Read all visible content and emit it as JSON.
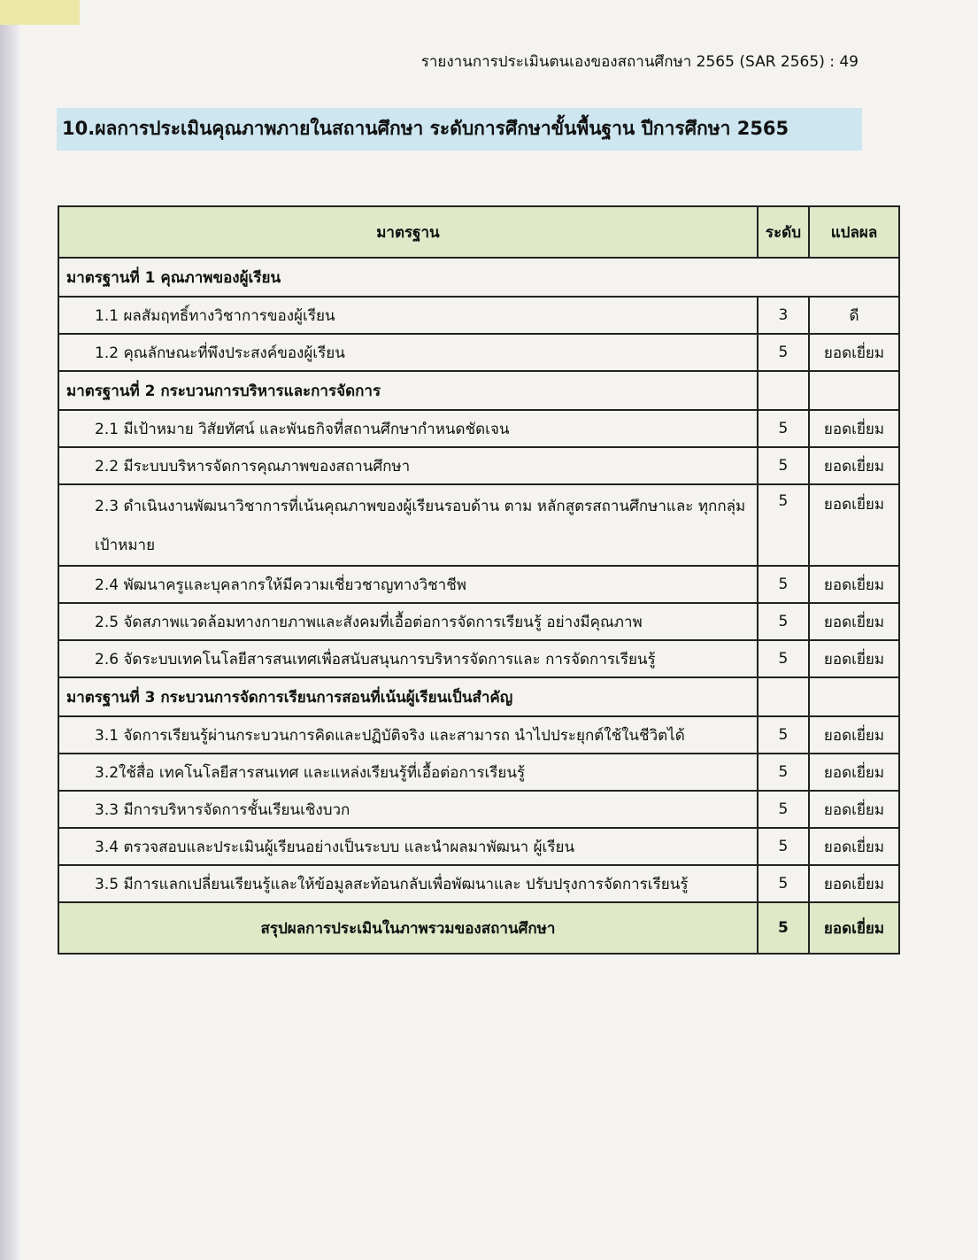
{
  "running_header": "รายงานการประเมินตนเองของสถานศึกษา 2565 (SAR 2565) : 49",
  "title": "10.ผลการประเมินคุณภาพภายในสถานศึกษา ระดับการศึกษาขั้นพื้นฐาน  ปีการศึกษา 2565",
  "table": {
    "headers": [
      "มาตรฐาน",
      "ระดับ",
      "แปลผล"
    ],
    "rows": [
      {
        "type": "group",
        "text": "มาตรฐานที่ 1 คุณภาพของผู้เรียน",
        "full": true
      },
      {
        "type": "item",
        "text": "1.1 ผลสัมฤทธิ์ทางวิชาการของผู้เรียน",
        "level": "3",
        "result": "ดี"
      },
      {
        "type": "item",
        "text": "1.2 คุณลักษณะที่พึงประสงค์ของผู้เรียน",
        "level": "5",
        "result": "ยอดเยี่ยม"
      },
      {
        "type": "group",
        "text": "มาตรฐานที่ 2 กระบวนการบริหารและการจัดการ"
      },
      {
        "type": "item",
        "text": "2.1 มีเป้าหมาย วิสัยทัศน์ และพันธกิจที่สถานศึกษากำหนดชัดเจน",
        "level": "5",
        "result": "ยอดเยี่ยม"
      },
      {
        "type": "item",
        "text": "2.2 มีระบบบริหารจัดการคุณภาพของสถานศึกษา",
        "level": "5",
        "result": "ยอดเยี่ยม"
      },
      {
        "type": "item",
        "text": "2.3 ดำเนินงานพัฒนาวิชาการที่เน้นคุณภาพของผู้เรียนรอบด้าน ตาม หลักสูตรสถานศึกษาและ ทุกกลุ่มเป้าหมาย",
        "level": "5",
        "result": "ยอดเยี่ยม",
        "multi": true
      },
      {
        "type": "item",
        "text": "2.4 พัฒนาครูและบุคลากรให้มีความเชี่ยวชาญทางวิชาชีพ",
        "level": "5",
        "result": "ยอดเยี่ยม"
      },
      {
        "type": "item",
        "text": "2.5 จัดสภาพแวดล้อมทางกายภาพและสังคมที่เอื้อต่อการจัดการเรียนรู้ อย่างมีคุณภาพ",
        "level": "5",
        "result": "ยอดเยี่ยม"
      },
      {
        "type": "item",
        "text": "2.6 จัดระบบเทคโนโลยีสารสนเทศเพื่อสนับสนุนการบริหารจัดการและ การจัดการเรียนรู้",
        "level": "5",
        "result": "ยอดเยี่ยม"
      },
      {
        "type": "group",
        "text": "มาตรฐานที่ 3 กระบวนการจัดการเรียนการสอนที่เน้นผู้เรียนเป็นสำคัญ"
      },
      {
        "type": "item",
        "text": "3.1 จัดการเรียนรู้ผ่านกระบวนการคิดและปฏิบัติจริง และสามารถ นำไปประยุกต์ใช้ในชีวิตได้",
        "level": "5",
        "result": "ยอดเยี่ยม"
      },
      {
        "type": "item",
        "text": "3.2ใช้สื่อ เทคโนโลยีสารสนเทศ และแหล่งเรียนรู้ที่เอื้อต่อการเรียนรู้",
        "level": "5",
        "result": "ยอดเยี่ยม"
      },
      {
        "type": "item",
        "text": "3.3 มีการบริหารจัดการชั้นเรียนเชิงบวก",
        "level": "5",
        "result": "ยอดเยี่ยม"
      },
      {
        "type": "item",
        "text": "3.4 ตรวจสอบและประเมินผู้เรียนอย่างเป็นระบบ และนำผลมาพัฒนา ผู้เรียน",
        "level": "5",
        "result": "ยอดเยี่ยม"
      },
      {
        "type": "item",
        "text": "3.5 มีการแลกเปลี่ยนเรียนรู้และให้ข้อมูลสะท้อนกลับเพื่อพัฒนาและ ปรับปรุงการจัดการเรียนรู้",
        "level": "5",
        "result": "ยอดเยี่ยม"
      }
    ],
    "summary": {
      "text": "สรุปผลการประเมินในภาพรวมของสถานศึกษา",
      "level": "5",
      "result": "ยอดเยี่ยม"
    }
  },
  "colors": {
    "title_highlight": "#cde6f0",
    "table_header": "#dfe9c8"
  }
}
